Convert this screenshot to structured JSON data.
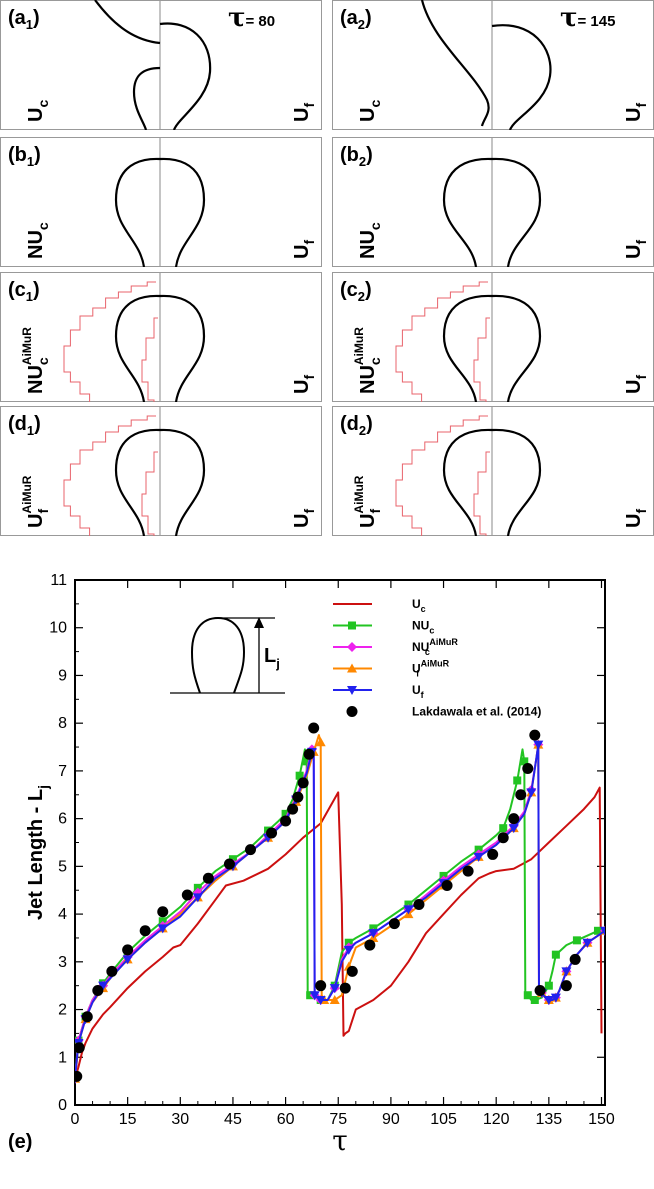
{
  "figure_panels": {
    "tau_left": "τ= 80",
    "tau_right": "τ= 145",
    "rows": [
      {
        "id": "a",
        "left_label": "(a1)",
        "right_label": "(a2)",
        "model": "U_c",
        "model_main": "U",
        "model_sub": "c",
        "model_sup": "",
        "reference": "U_f"
      },
      {
        "id": "b",
        "left_label": "(b1)",
        "right_label": "(b2)",
        "model": "NU_c",
        "model_main": "NU",
        "model_sub": "c",
        "model_sup": "",
        "reference": "U_f"
      },
      {
        "id": "c",
        "left_label": "(c1)",
        "right_label": "(c2)",
        "model": "NU_c^AiMuR",
        "model_main": "NU",
        "model_sub": "c",
        "model_sup": "AiMuR",
        "reference": "U_f"
      },
      {
        "id": "d",
        "left_label": "(d1)",
        "right_label": "(d2)",
        "model": "U_f^AiMuR",
        "model_main": "U",
        "model_sub": "f",
        "model_sup": "AiMuR",
        "reference": "U_f"
      }
    ],
    "ref_main": "U",
    "ref_sub": "f",
    "colors": {
      "interface": "#000000",
      "refinement": "#e8636b",
      "frame": "#999999"
    }
  },
  "chart_data": {
    "type": "line",
    "panel_label": "(e)",
    "xlabel": "τ",
    "ylabel": "Jet Length - Lj",
    "ylabel_main": "Jet Length - L",
    "ylabel_sub": "j",
    "xlim": [
      0,
      151
    ],
    "ylim": [
      0,
      11
    ],
    "xticks": [
      0,
      15,
      30,
      45,
      60,
      75,
      90,
      105,
      120,
      135,
      150
    ],
    "yticks": [
      0,
      1,
      2,
      3,
      4,
      5,
      6,
      7,
      8,
      9,
      10,
      11
    ],
    "xtick_labels": [
      "0",
      "15",
      "30",
      "45",
      "60",
      "75",
      "90",
      "105",
      "120",
      "135",
      "150"
    ],
    "ytick_labels": [
      "0",
      "1",
      "2",
      "3",
      "4",
      "5",
      "6",
      "7",
      "8",
      "9",
      "10",
      "11"
    ],
    "inset_label_main": "L",
    "inset_label_sub": "j",
    "series": [
      {
        "name": "Uc",
        "legend_main": "U",
        "legend_sub": "c",
        "legend_sup": "",
        "color": "#cc1010",
        "marker": "none",
        "x": [
          0,
          1,
          2,
          3,
          5,
          8,
          10,
          15,
          20,
          25,
          28,
          30,
          35,
          40,
          43,
          48,
          55,
          60,
          65,
          70,
          75,
          76,
          76.5,
          77,
          78,
          80,
          85,
          90,
          95,
          100,
          105,
          110,
          115,
          118,
          120,
          125,
          130,
          135,
          140,
          145,
          148,
          149.5,
          150
        ],
        "y": [
          0.55,
          0.8,
          1.1,
          1.3,
          1.6,
          1.9,
          2.05,
          2.45,
          2.8,
          3.1,
          3.3,
          3.35,
          3.8,
          4.3,
          4.6,
          4.7,
          4.95,
          5.25,
          5.6,
          5.9,
          6.55,
          4.2,
          1.45,
          1.5,
          1.55,
          2.0,
          2.2,
          2.5,
          3.0,
          3.6,
          4.0,
          4.4,
          4.75,
          4.85,
          4.9,
          4.95,
          5.15,
          5.5,
          5.85,
          6.2,
          6.45,
          6.65,
          1.5
        ]
      },
      {
        "name": "NUc",
        "legend_main": "NU",
        "legend_sub": "c",
        "legend_sup": "",
        "color": "#22c422",
        "marker": "square",
        "x": [
          0,
          0.5,
          1,
          2,
          3,
          5,
          8,
          10,
          15,
          20,
          25,
          30,
          35,
          40,
          45,
          50,
          55,
          58,
          60,
          62,
          64,
          65.5,
          66,
          66.3,
          67,
          69,
          70,
          72,
          74,
          76,
          78,
          80,
          85,
          90,
          95,
          100,
          105,
          110,
          115,
          120,
          122,
          124,
          126,
          127.5,
          128,
          128.3,
          129,
          130,
          131,
          133,
          135,
          136,
          137,
          140,
          143,
          146,
          149,
          151
        ],
        "y": [
          0.6,
          1.0,
          1.35,
          1.6,
          1.85,
          2.2,
          2.55,
          2.75,
          3.2,
          3.55,
          3.85,
          4.15,
          4.55,
          4.9,
          5.15,
          5.4,
          5.75,
          5.95,
          6.1,
          6.4,
          6.9,
          7.45,
          7.2,
          2.3,
          2.3,
          2.25,
          2.2,
          2.2,
          2.5,
          3.2,
          3.4,
          3.5,
          3.7,
          3.95,
          4.2,
          4.5,
          4.8,
          5.1,
          5.35,
          5.65,
          5.8,
          6.2,
          6.8,
          7.45,
          7.2,
          2.35,
          2.3,
          2.2,
          2.2,
          2.25,
          2.5,
          2.8,
          3.15,
          3.35,
          3.45,
          3.55,
          3.65,
          3.7
        ]
      },
      {
        "name": "NUc AiMuR",
        "legend_main": "NU",
        "legend_sub": "c",
        "legend_sup": "AiMuR",
        "color": "#ee22ee",
        "marker": "diamond",
        "x": [
          0,
          0.5,
          1,
          2,
          3,
          5,
          8,
          10,
          15,
          20,
          25,
          30,
          35,
          40,
          45,
          50,
          55,
          60,
          63,
          66,
          67.5,
          68,
          68.3,
          69,
          70,
          72,
          74,
          76,
          78,
          80,
          85,
          90,
          95,
          100,
          105,
          110,
          115,
          120,
          125,
          128,
          130,
          131.5,
          132,
          132.2,
          133,
          134,
          135,
          136,
          137,
          138,
          140,
          143,
          146,
          149,
          151
        ],
        "y": [
          0.55,
          0.95,
          1.35,
          1.6,
          1.85,
          2.2,
          2.5,
          2.7,
          3.1,
          3.45,
          3.75,
          4.05,
          4.45,
          4.8,
          5.05,
          5.3,
          5.65,
          6.0,
          6.45,
          7.0,
          7.45,
          7.5,
          2.3,
          2.25,
          2.2,
          2.2,
          2.45,
          3.05,
          3.3,
          3.4,
          3.6,
          3.85,
          4.1,
          4.4,
          4.7,
          5.0,
          5.25,
          5.5,
          5.85,
          6.15,
          6.6,
          7.3,
          7.55,
          2.4,
          2.35,
          2.25,
          2.2,
          2.2,
          2.25,
          2.4,
          2.8,
          3.15,
          3.4,
          3.55,
          3.65
        ]
      },
      {
        "name": "Uf AiMuR",
        "legend_main": "U",
        "legend_sub": "f",
        "legend_sup": "AiMuR",
        "color": "#ff8800",
        "marker": "triangle-up",
        "x": [
          0,
          0.5,
          1,
          2,
          3,
          5,
          8,
          10,
          15,
          20,
          25,
          30,
          35,
          40,
          45,
          50,
          55,
          60,
          63,
          66,
          68,
          69.5,
          70,
          70.3,
          71,
          72,
          74,
          76,
          78,
          80,
          85,
          90,
          95,
          100,
          105,
          110,
          115,
          120,
          125,
          128,
          130,
          131.5,
          132,
          132.2,
          133,
          134,
          135,
          136,
          137,
          138,
          140,
          143,
          146,
          149,
          151
        ],
        "y": [
          0.55,
          0.9,
          1.3,
          1.55,
          1.8,
          2.15,
          2.45,
          2.65,
          3.05,
          3.4,
          3.7,
          4.0,
          4.35,
          4.7,
          5.0,
          5.3,
          5.6,
          5.95,
          6.35,
          6.9,
          7.4,
          7.75,
          7.6,
          2.3,
          2.2,
          2.2,
          2.2,
          2.3,
          2.9,
          3.3,
          3.5,
          3.75,
          4.0,
          4.3,
          4.6,
          4.9,
          5.2,
          5.45,
          5.8,
          6.1,
          6.55,
          7.3,
          7.55,
          2.4,
          2.35,
          2.25,
          2.2,
          2.2,
          2.25,
          2.4,
          2.8,
          3.15,
          3.4,
          3.55,
          3.65
        ]
      },
      {
        "name": "Uf",
        "legend_main": "U",
        "legend_sub": "f",
        "legend_sup": "",
        "color": "#2222ee",
        "marker": "triangle-down",
        "x": [
          0,
          0.5,
          1,
          2,
          3,
          5,
          8,
          10,
          15,
          20,
          25,
          30,
          35,
          40,
          45,
          50,
          55,
          60,
          63,
          66,
          67.5,
          68,
          68.3,
          69,
          70,
          72,
          74,
          76,
          78,
          80,
          85,
          90,
          95,
          100,
          105,
          110,
          115,
          120,
          125,
          128,
          130,
          131.5,
          132,
          132.2,
          133,
          134,
          135,
          136,
          137,
          138,
          140,
          143,
          146,
          149,
          151
        ],
        "y": [
          0.55,
          0.95,
          1.3,
          1.55,
          1.8,
          2.15,
          2.5,
          2.65,
          3.05,
          3.4,
          3.7,
          3.95,
          4.35,
          4.75,
          5.0,
          5.3,
          5.6,
          5.95,
          6.4,
          6.95,
          7.4,
          7.45,
          2.3,
          2.25,
          2.2,
          2.2,
          2.45,
          3.0,
          3.25,
          3.4,
          3.6,
          3.85,
          4.1,
          4.35,
          4.65,
          4.95,
          5.2,
          5.45,
          5.8,
          6.1,
          6.55,
          7.3,
          7.55,
          2.4,
          2.35,
          2.25,
          2.2,
          2.2,
          2.25,
          2.4,
          2.8,
          3.15,
          3.4,
          3.55,
          3.65
        ]
      },
      {
        "name": "Lakdawala et al. (2014)",
        "legend_main": "Lakdawala et al. (2014)",
        "legend_sub": "",
        "legend_sup": "",
        "color": "#000000",
        "marker": "circle",
        "x": [
          0.5,
          1.2,
          3.5,
          6.5,
          10.5,
          15,
          20,
          25,
          32,
          38,
          44,
          50,
          56,
          60,
          62,
          63.5,
          65,
          66.7,
          68,
          70,
          77,
          79,
          84,
          91,
          98,
          106,
          112,
          119,
          122,
          125,
          127,
          129,
          131,
          132.5,
          140,
          142.5
        ],
        "y": [
          0.6,
          1.2,
          1.85,
          2.4,
          2.8,
          3.25,
          3.65,
          4.05,
          4.4,
          4.75,
          5.05,
          5.35,
          5.7,
          5.95,
          6.2,
          6.45,
          6.75,
          7.35,
          7.9,
          2.5,
          2.45,
          2.8,
          3.35,
          3.8,
          4.2,
          4.6,
          4.9,
          5.25,
          5.6,
          6.0,
          6.5,
          7.05,
          7.75,
          2.4,
          2.5,
          3.05
        ]
      }
    ]
  }
}
